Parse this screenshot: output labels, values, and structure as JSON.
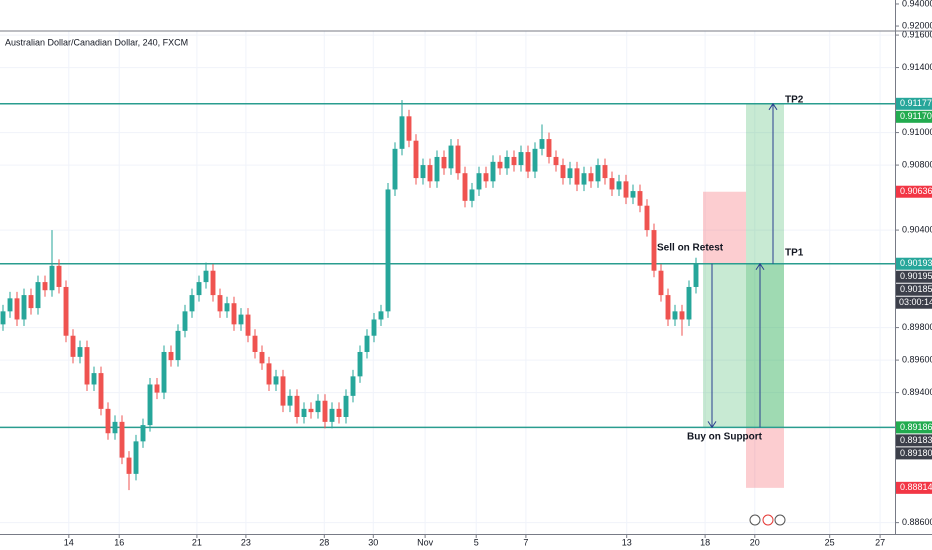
{
  "chart_data": {
    "type": "candlestick",
    "title": "Australian Dollar/Canadian Dollar, 240, FXCM",
    "up_color": "#26a69a",
    "down_color": "#ef5350",
    "candles": [
      [
        0.8982,
        0.8994,
        0.8978,
        0.899
      ],
      [
        0.899,
        0.9002,
        0.8986,
        0.8998
      ],
      [
        0.8998,
        0.9002,
        0.8981,
        0.8985
      ],
      [
        0.8985,
        0.9004,
        0.8981,
        0.9
      ],
      [
        0.9,
        0.9004,
        0.8988,
        0.8992
      ],
      [
        0.8992,
        0.9012,
        0.8988,
        0.9008
      ],
      [
        0.9008,
        0.9012,
        0.8999,
        0.9003
      ],
      [
        0.9003,
        0.904,
        0.8999,
        0.9018
      ],
      [
        0.9018,
        0.9022,
        0.9001,
        0.9005
      ],
      [
        0.9005,
        0.9009,
        0.8971,
        0.8975
      ],
      [
        0.8975,
        0.8979,
        0.8958,
        0.8962
      ],
      [
        0.8962,
        0.8972,
        0.8958,
        0.8968
      ],
      [
        0.8968,
        0.8972,
        0.8941,
        0.8945
      ],
      [
        0.8945,
        0.8956,
        0.8941,
        0.8952
      ],
      [
        0.8952,
        0.8956,
        0.8926,
        0.893
      ],
      [
        0.893,
        0.8934,
        0.8911,
        0.8915
      ],
      [
        0.8915,
        0.8926,
        0.8911,
        0.8922
      ],
      [
        0.8922,
        0.8926,
        0.8896,
        0.89
      ],
      [
        0.89,
        0.8904,
        0.888,
        0.889
      ],
      [
        0.889,
        0.8914,
        0.8886,
        0.891
      ],
      [
        0.891,
        0.8924,
        0.8906,
        0.892
      ],
      [
        0.892,
        0.8949,
        0.8916,
        0.8945
      ],
      [
        0.8945,
        0.8949,
        0.8936,
        0.894
      ],
      [
        0.894,
        0.8969,
        0.8936,
        0.8965
      ],
      [
        0.8965,
        0.8969,
        0.8956,
        0.896
      ],
      [
        0.896,
        0.8982,
        0.8956,
        0.8978
      ],
      [
        0.8978,
        0.8994,
        0.8974,
        0.899
      ],
      [
        0.899,
        0.9004,
        0.8986,
        0.9
      ],
      [
        0.9,
        0.9012,
        0.8996,
        0.9008
      ],
      [
        0.9008,
        0.902,
        0.9004,
        0.9015
      ],
      [
        0.9015,
        0.9019,
        0.8996,
        0.9
      ],
      [
        0.9,
        0.9004,
        0.8986,
        0.899
      ],
      [
        0.899,
        0.8999,
        0.8986,
        0.8995
      ],
      [
        0.8995,
        0.8999,
        0.8978,
        0.8982
      ],
      [
        0.8982,
        0.8992,
        0.8978,
        0.8988
      ],
      [
        0.8988,
        0.8992,
        0.8971,
        0.8975
      ],
      [
        0.8975,
        0.8979,
        0.8961,
        0.8965
      ],
      [
        0.8965,
        0.8969,
        0.8954,
        0.8958
      ],
      [
        0.8958,
        0.8962,
        0.8941,
        0.8945
      ],
      [
        0.8945,
        0.8954,
        0.8941,
        0.895
      ],
      [
        0.895,
        0.8954,
        0.8928,
        0.8932
      ],
      [
        0.8932,
        0.8942,
        0.8928,
        0.8938
      ],
      [
        0.8938,
        0.8942,
        0.8921,
        0.8925
      ],
      [
        0.8925,
        0.8934,
        0.8921,
        0.893
      ],
      [
        0.893,
        0.8934,
        0.8924,
        0.8928
      ],
      [
        0.8928,
        0.8939,
        0.8924,
        0.8935
      ],
      [
        0.8935,
        0.8939,
        0.8918,
        0.8922
      ],
      [
        0.8922,
        0.8934,
        0.8918,
        0.893
      ],
      [
        0.893,
        0.8934,
        0.8921,
        0.8925
      ],
      [
        0.8925,
        0.8942,
        0.8921,
        0.8938
      ],
      [
        0.8938,
        0.8954,
        0.8934,
        0.895
      ],
      [
        0.895,
        0.8969,
        0.8946,
        0.8965
      ],
      [
        0.8965,
        0.8979,
        0.8961,
        0.8975
      ],
      [
        0.8975,
        0.8989,
        0.8971,
        0.8985
      ],
      [
        0.8985,
        0.8994,
        0.8981,
        0.899
      ],
      [
        0.899,
        0.9069,
        0.8986,
        0.9065
      ],
      [
        0.9065,
        0.9094,
        0.9061,
        0.909
      ],
      [
        0.909,
        0.912,
        0.9086,
        0.911
      ],
      [
        0.911,
        0.9114,
        0.9091,
        0.9095
      ],
      [
        0.9095,
        0.9099,
        0.9068,
        0.9072
      ],
      [
        0.9072,
        0.9084,
        0.9068,
        0.908
      ],
      [
        0.908,
        0.9084,
        0.9066,
        0.907
      ],
      [
        0.907,
        0.9089,
        0.9066,
        0.9085
      ],
      [
        0.9085,
        0.9089,
        0.9074,
        0.9078
      ],
      [
        0.9078,
        0.9096,
        0.9074,
        0.9092
      ],
      [
        0.9092,
        0.9096,
        0.9071,
        0.9075
      ],
      [
        0.9075,
        0.9079,
        0.9054,
        0.9058
      ],
      [
        0.9058,
        0.9069,
        0.9054,
        0.9065
      ],
      [
        0.9065,
        0.9079,
        0.9061,
        0.9075
      ],
      [
        0.9075,
        0.9079,
        0.9066,
        0.907
      ],
      [
        0.907,
        0.9086,
        0.9066,
        0.9082
      ],
      [
        0.9082,
        0.9086,
        0.9074,
        0.9078
      ],
      [
        0.9078,
        0.9089,
        0.9074,
        0.9085
      ],
      [
        0.9085,
        0.9089,
        0.9076,
        0.908
      ],
      [
        0.908,
        0.9092,
        0.9076,
        0.9088
      ],
      [
        0.9088,
        0.9092,
        0.9072,
        0.9076
      ],
      [
        0.9076,
        0.9094,
        0.9072,
        0.909
      ],
      [
        0.909,
        0.9105,
        0.9086,
        0.9096
      ],
      [
        0.9096,
        0.91,
        0.9081,
        0.9085
      ],
      [
        0.9085,
        0.9089,
        0.9076,
        0.908
      ],
      [
        0.908,
        0.9084,
        0.9068,
        0.9072
      ],
      [
        0.9072,
        0.9082,
        0.9068,
        0.9078
      ],
      [
        0.9078,
        0.9082,
        0.9064,
        0.9068
      ],
      [
        0.9068,
        0.9079,
        0.9064,
        0.9075
      ],
      [
        0.9075,
        0.9079,
        0.9066,
        0.907
      ],
      [
        0.907,
        0.9084,
        0.9066,
        0.908
      ],
      [
        0.908,
        0.9084,
        0.9068,
        0.9072
      ],
      [
        0.9072,
        0.9076,
        0.9061,
        0.9065
      ],
      [
        0.9065,
        0.9074,
        0.9061,
        0.907
      ],
      [
        0.907,
        0.9074,
        0.9056,
        0.906
      ],
      [
        0.906,
        0.9068,
        0.9056,
        0.9064
      ],
      [
        0.9064,
        0.9068,
        0.9051,
        0.9055
      ],
      [
        0.9055,
        0.9059,
        0.9036,
        0.904
      ],
      [
        0.904,
        0.9044,
        0.9011,
        0.9015
      ],
      [
        0.9015,
        0.9019,
        0.8996,
        0.9
      ],
      [
        0.9,
        0.9004,
        0.8981,
        0.8985
      ],
      [
        0.8985,
        0.8994,
        0.8981,
        0.899
      ],
      [
        0.899,
        0.8994,
        0.8975,
        0.8985
      ],
      [
        0.8985,
        0.9009,
        0.8981,
        0.9005
      ],
      [
        0.9005,
        0.9023,
        0.9001,
        0.9019
      ]
    ],
    "xlim": [
      -0.43,
      127.43
    ],
    "xticks": [
      {
        "value": 9.4,
        "label": "14"
      },
      {
        "value": 16.6,
        "label": "16"
      },
      {
        "value": 27.7,
        "label": "21"
      },
      {
        "value": 34.7,
        "label": "23"
      },
      {
        "value": 45.9,
        "label": "28"
      },
      {
        "value": 52.9,
        "label": "30"
      },
      {
        "value": 60.3,
        "label": "Nov"
      },
      {
        "value": 67.6,
        "label": "5"
      },
      {
        "value": 74.7,
        "label": "7"
      },
      {
        "value": 89.1,
        "label": "13"
      },
      {
        "value": 100.3,
        "label": "18"
      },
      {
        "value": 107.4,
        "label": "20"
      },
      {
        "value": 118.1,
        "label": "25"
      },
      {
        "value": 125.3,
        "label": "27"
      }
    ],
    "ylim": [
      0.8853,
      0.91625
    ],
    "yticks": [
      {
        "value": 0.916,
        "label": "0.91600"
      },
      {
        "value": 0.914,
        "label": "0.91400"
      },
      {
        "value": 0.91,
        "label": "0.91000"
      },
      {
        "value": 0.908,
        "label": "0.90800"
      },
      {
        "value": 0.904,
        "label": "0.90400"
      },
      {
        "value": 0.898,
        "label": "0.89800"
      },
      {
        "value": 0.896,
        "label": "0.89600"
      },
      {
        "value": 0.894,
        "label": "0.89400"
      },
      {
        "value": 0.886,
        "label": "0.88600"
      }
    ],
    "top_ylim": [
      0.9155,
      0.9436
    ],
    "top_yticks": [
      {
        "value": 0.94,
        "label": "0.94000"
      },
      {
        "value": 0.92,
        "label": "0.92000"
      }
    ],
    "grid": true,
    "levels": [
      0.91177,
      0.90193,
      0.89186
    ],
    "level_color": "#2a9d8f",
    "short_position": {
      "stop": 0.90636,
      "entry": 0.90193,
      "target": 0.89186
    },
    "long_position": {
      "stop": 0.88814,
      "entry": 0.89186,
      "target": 0.91177
    },
    "annotations": [
      "Sell on Retest",
      "Buy on Support",
      "TP1",
      "TP2"
    ],
    "price_labels": [
      {
        "value": 0.91177,
        "label": "0.91177",
        "color": "#26a69a"
      },
      {
        "value": 0.9117,
        "label": "0.91170",
        "color": "#22ab4f"
      },
      {
        "value": 0.90636,
        "label": "0.90636",
        "color": "#f23645"
      },
      {
        "value": 0.90193,
        "label": "0.90193",
        "color": "#26a69a"
      },
      {
        "value": 0.90195,
        "label": "0.90195",
        "color": "#3c3f4a"
      },
      {
        "value": 0.90185,
        "label": "0.90185",
        "color": "#3c3f4a"
      },
      {
        "value": 0.89186,
        "label": "0.89186",
        "color": "#22ab4f"
      },
      {
        "value": 0.89183,
        "label": "0.89183",
        "color": "#3c3f4a"
      },
      {
        "value": 0.8918,
        "label": "0.89180",
        "color": "#3c3f4a"
      },
      {
        "value": 0.88814,
        "label": "0.88814",
        "color": "#f23645"
      }
    ],
    "countdown": "03:00:14"
  }
}
